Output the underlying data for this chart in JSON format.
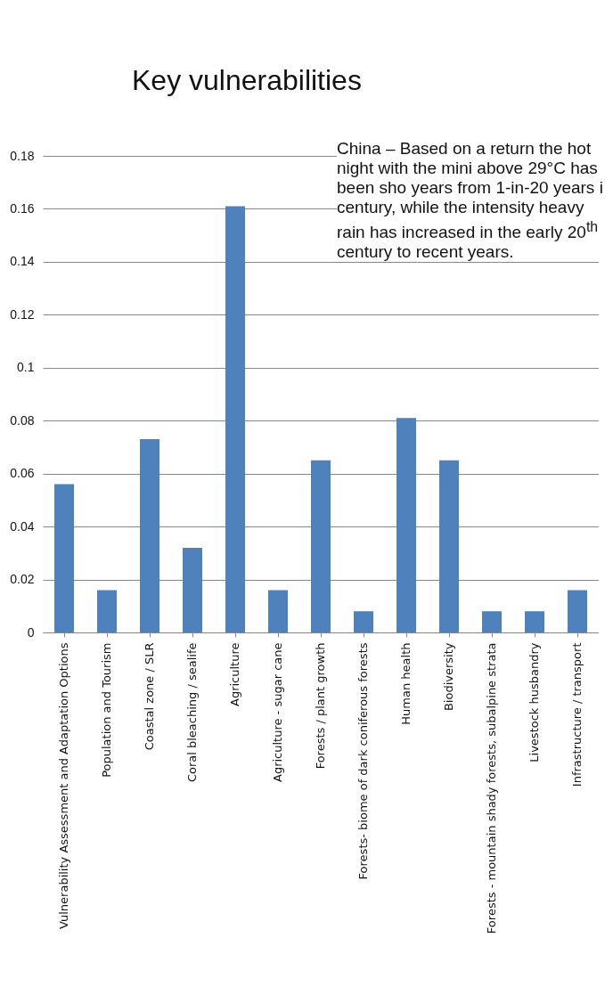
{
  "chart_data": {
    "type": "bar",
    "title": "Key vulnerabilities",
    "categories": [
      "Vulnerability Assessment and Adaptation Options",
      "Population and Tourism",
      "Coastal zone / SLR",
      "Coral bleaching / sealife",
      "Agriculture",
      "Agriculture - sugar cane",
      "Forests / plant growth",
      "Forests- biome of dark coniferous forests",
      "Human health",
      "Biodiversity",
      "Forests - mountain shady forests, subalpine strata",
      "Livestock husbandry",
      "Infrastructure / transport"
    ],
    "values": [
      0.056,
      0.016,
      0.073,
      0.032,
      0.161,
      0.016,
      0.065,
      0.008,
      0.081,
      0.065,
      0.008,
      0.008,
      0.016
    ],
    "color": "#4f81bd",
    "ylim": [
      0,
      0.18
    ],
    "yticks": [
      0,
      0.02,
      0.04,
      0.06,
      0.08,
      0.1,
      0.12,
      0.14,
      0.16,
      0.18
    ],
    "grid": "y",
    "annotations": [
      "China – Based on a return the hot night with the mini above 29°C has been sho years from 1-in-20 years i century, while the intensity heavy rain has increased in the early 20$^{th}$ century to recent years."
    ]
  }
}
